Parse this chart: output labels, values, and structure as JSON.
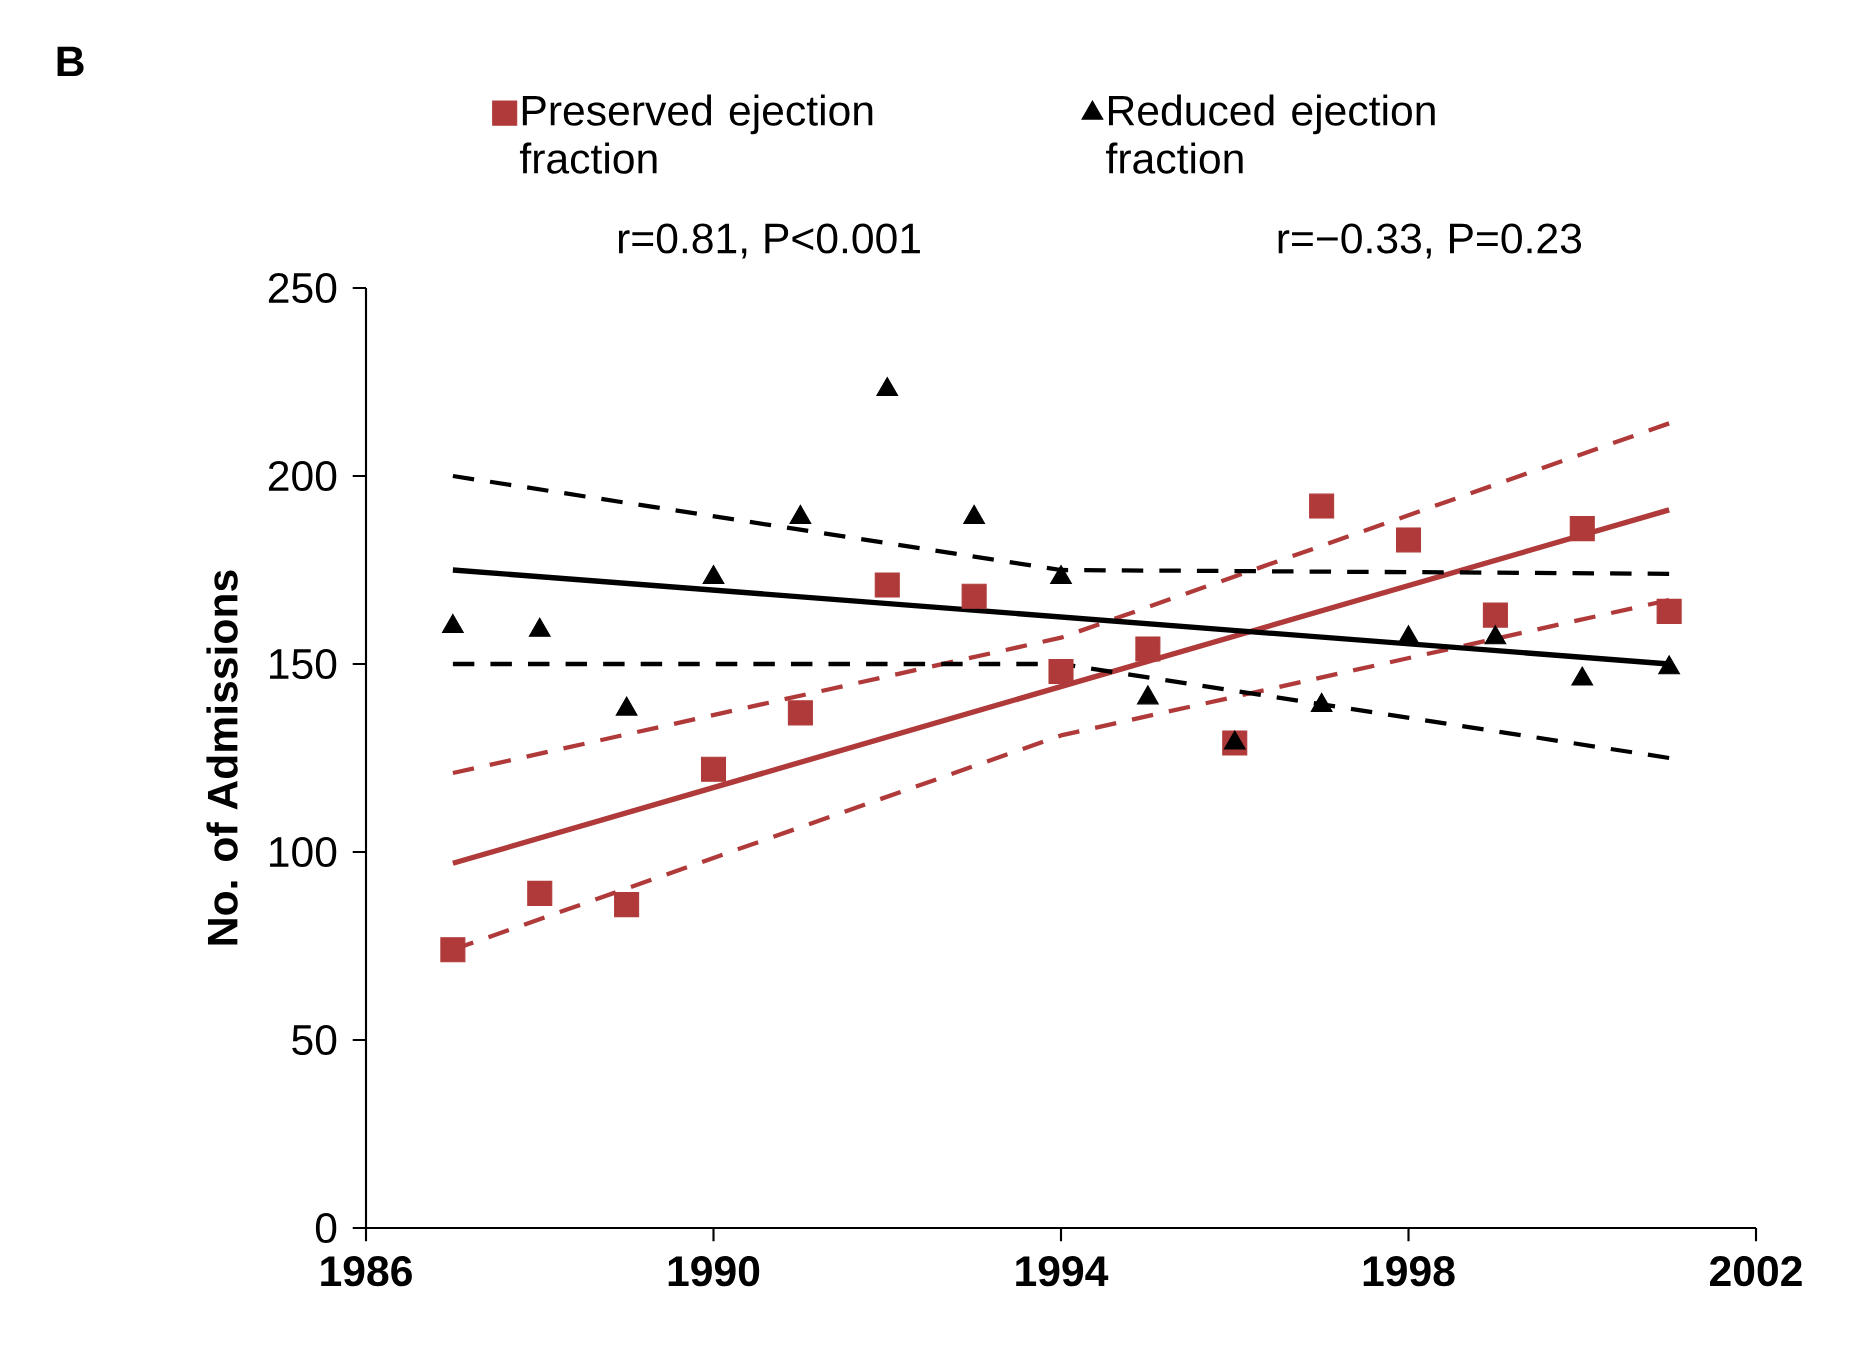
{
  "chart_data": {
    "type": "scatter",
    "title": "B",
    "ylabel": "No. of Admissions",
    "annotations": [
      "r=0.81, P<0.001",
      "r=−0.33, P=0.23"
    ],
    "xlim": [
      1986,
      2002
    ],
    "xticks": [
      1986,
      1990,
      1994,
      1998,
      2002
    ],
    "ylim": [
      0,
      250
    ],
    "yticks": [
      0,
      50,
      100,
      150,
      200,
      250
    ],
    "legend": "top",
    "series": [
      {
        "name": "Preserved ejection fraction",
        "color": "#b03a3a",
        "marker": "square",
        "x": [
          1987,
          1988,
          1989,
          1990,
          1991,
          1992,
          1993,
          1994,
          1995,
          1996,
          1997,
          1998,
          1999,
          2000,
          2001
        ],
        "values": [
          74,
          89,
          86,
          122,
          137,
          171,
          168,
          148,
          154,
          129,
          192,
          183,
          163,
          186,
          164
        ]
      },
      {
        "name": "Reduced ejection fraction",
        "color": "#000000",
        "marker": "triangle",
        "x": [
          1987,
          1988,
          1989,
          1990,
          1991,
          1992,
          1993,
          1994,
          1995,
          1996,
          1997,
          1998,
          1999,
          2000,
          2001
        ],
        "values": [
          160,
          159,
          138,
          173,
          189,
          223,
          189,
          173,
          141,
          129,
          139,
          157,
          157,
          146,
          149
        ]
      },
      {
        "type": "line",
        "color": "#b03a3a",
        "line_style": "solid",
        "x": [
          1987,
          2001
        ],
        "values": [
          97,
          191
        ]
      },
      {
        "type": "line",
        "color": "#b03a3a",
        "line_style": "dashed",
        "x": [
          1987,
          1994,
          2001
        ],
        "values": [
          121,
          157,
          214
        ]
      },
      {
        "type": "line",
        "color": "#b03a3a",
        "line_style": "dashed",
        "x": [
          1987,
          1994,
          2001
        ],
        "values": [
          74,
          131,
          167
        ]
      },
      {
        "type": "line",
        "color": "#000000",
        "line_style": "solid",
        "x": [
          1987,
          2001
        ],
        "values": [
          175,
          150
        ]
      },
      {
        "type": "line",
        "color": "#000000",
        "line_style": "dashed",
        "x": [
          1987,
          1994,
          2001
        ],
        "values": [
          200,
          175,
          174
        ]
      },
      {
        "type": "line",
        "color": "#000000",
        "line_style": "dashed",
        "x": [
          1987,
          1994,
          2001
        ],
        "values": [
          150,
          150,
          125
        ]
      }
    ]
  }
}
